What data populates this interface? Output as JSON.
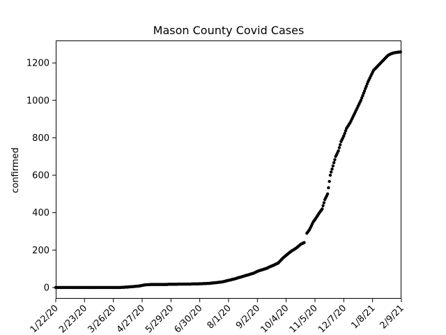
{
  "chart_data": {
    "type": "scatter",
    "title": "Mason County Covid Cases",
    "xlabel": "",
    "ylabel": "confirmed",
    "x_tick_labels": [
      "1/22/20",
      "2/23/20",
      "3/26/20",
      "4/27/20",
      "5/29/20",
      "6/30/20",
      "8/1/20",
      "9/2/20",
      "10/4/20",
      "11/5/20",
      "12/7/20",
      "1/8/21",
      "2/9/21"
    ],
    "y_ticks": [
      0,
      200,
      400,
      600,
      800,
      1000,
      1200
    ],
    "ylim": [
      -60,
      1320
    ],
    "xlim": [
      "1/22/20",
      "2/9/21"
    ],
    "grid": false,
    "marker_color": "#000000",
    "series": [
      {
        "x": [
          "1/22/20",
          "2/5/20",
          "2/19/20",
          "3/4/20",
          "3/18/20",
          "4/1/20",
          "4/10/20",
          "4/15/20",
          "4/20/20",
          "4/24/20",
          "4/28/20",
          "5/2/20",
          "5/10/20",
          "5/20/20",
          "6/1/20",
          "6/10/20",
          "6/17/20",
          "6/25/20",
          "7/2/20",
          "7/10/20",
          "7/17/20",
          "7/25/20",
          "8/1/20",
          "8/7/20",
          "8/14/20",
          "8/21/20",
          "8/28/20",
          "9/4/20",
          "9/11/20",
          "9/18/20",
          "9/25/20",
          "10/1/20",
          "10/6/20",
          "10/10/20",
          "10/15/20",
          "10/20/20",
          "10/24/20",
          "10/27/20",
          "10/30/20",
          "11/3/20",
          "11/6/20",
          "11/10/20",
          "11/13/20",
          "11/16/20",
          "11/19/20",
          "11/22/20",
          "11/25/20",
          "11/28/20",
          "12/1/20",
          "12/4/20",
          "12/7/20",
          "12/10/20",
          "12/14/20",
          "12/18/20",
          "12/22/20",
          "12/26/20",
          "12/30/20",
          "1/3/21",
          "1/6/21",
          "1/9/21",
          "1/13/21",
          "1/17/21",
          "1/21/21",
          "1/25/21",
          "1/29/21",
          "2/2/21",
          "2/6/21",
          "2/11/21"
        ],
        "y": [
          0,
          0,
          0,
          0,
          0,
          0,
          2,
          4,
          6,
          8,
          12,
          15,
          16,
          16,
          17,
          18,
          18,
          19,
          20,
          22,
          25,
          30,
          38,
          45,
          55,
          65,
          75,
          90,
          100,
          115,
          130,
          160,
          180,
          195,
          210,
          230,
          240,
          290,
          310,
          350,
          370,
          400,
          420,
          470,
          500,
          600,
          650,
          700,
          730,
          780,
          810,
          850,
          880,
          920,
          960,
          1000,
          1050,
          1100,
          1130,
          1160,
          1180,
          1200,
          1220,
          1240,
          1250,
          1255,
          1258,
          1260
        ]
      }
    ]
  }
}
